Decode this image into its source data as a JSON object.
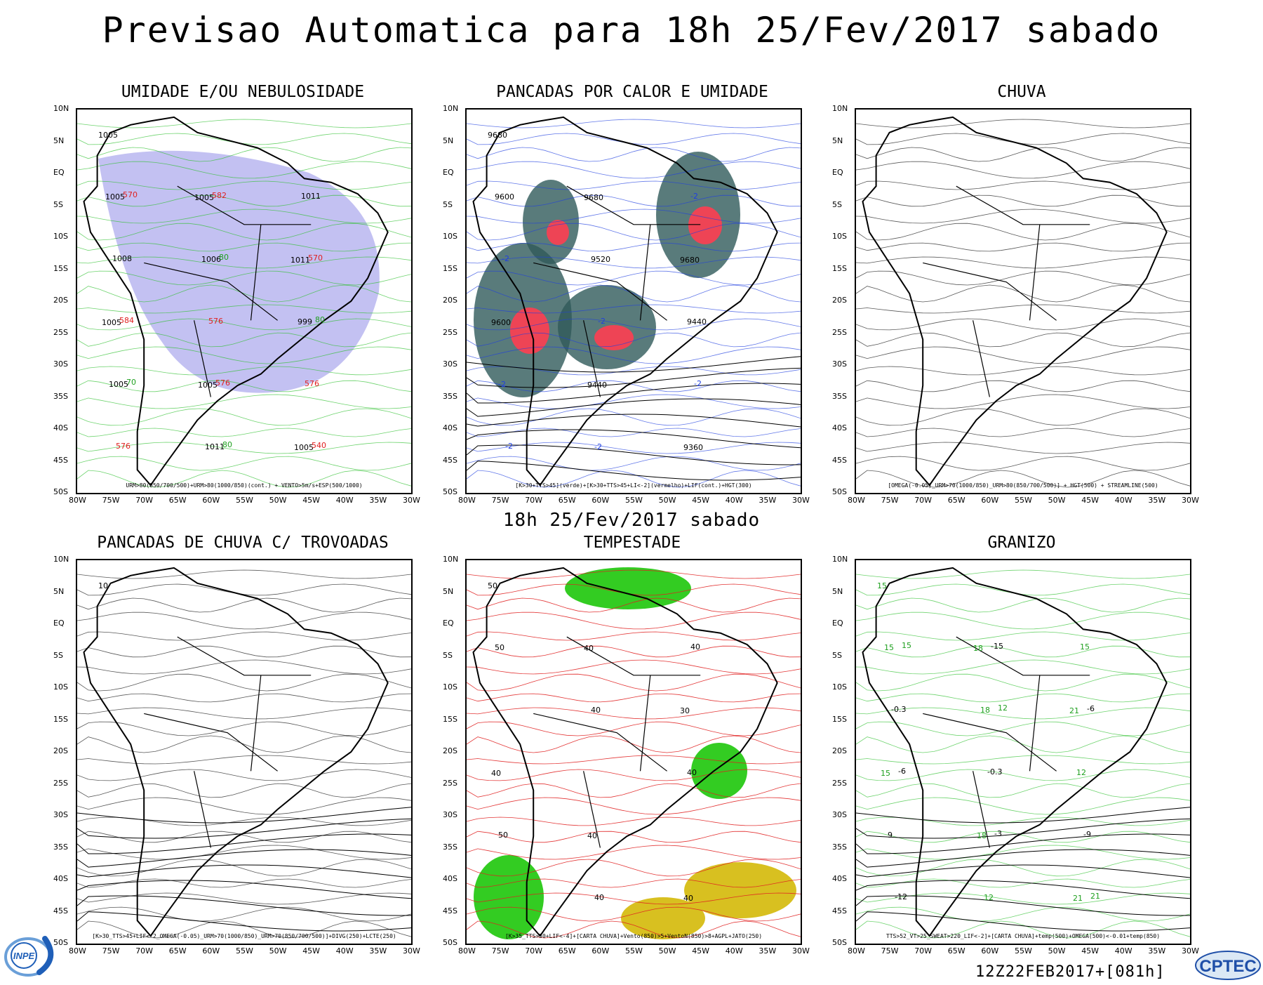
{
  "title": "Previsao Automatica  para 18h 25/Fev/2017 sabado",
  "subtitle": "18h 25/Fev/2017 sabado",
  "run_label": "12Z22FEB2017+[081h]",
  "logos": {
    "left": "INPE",
    "right": "CPTEC"
  },
  "lat_ticks": [
    "10N",
    "5N",
    "EQ",
    "5S",
    "10S",
    "15S",
    "20S",
    "25S",
    "30S",
    "35S",
    "40S",
    "45S",
    "50S"
  ],
  "lon_ticks": [
    "80W",
    "75W",
    "70W",
    "65W",
    "60W",
    "55W",
    "50W",
    "45W",
    "40W",
    "35W",
    "30W"
  ],
  "panels": [
    {
      "id": "umidade",
      "title": "UMIDADE E/OU NEBULOSIDADE",
      "legend": "URM>80(850/700/500)+URM>80(1000/850)(cont.) + VENTO>5m/s+ESP(500/1000)",
      "fill_color": "#b8b6f0",
      "contour_color": "#2fc02f",
      "labels": [
        "1005",
        "1005",
        "1011",
        "1005",
        "1005",
        "1005",
        "1005",
        "1006",
        "999",
        "1005",
        "1011",
        "1011",
        "1008",
        "576",
        "576",
        "576",
        "582",
        "570",
        "584",
        "576",
        "540",
        "570",
        "80",
        "80",
        "70",
        "80"
      ]
    },
    {
      "id": "pancadas-calor",
      "title": "PANCADAS POR CALOR E UMIDADE",
      "legend": "[K>30+TTS>45](verde)+[K>30+TTS>45+LI<-2](vermelho)+LIF(cont.)+HGT(300)",
      "fill_color": "#2f5a5a",
      "contour_color": "#1f3fe0",
      "labels": [
        "9680",
        "9680",
        "9680",
        "9600",
        "9440",
        "9360",
        "9600",
        "9520",
        "9440",
        "-2",
        "-2",
        "-2",
        "-2",
        "-2",
        "-2",
        "-2"
      ]
    },
    {
      "id": "chuva",
      "title": "CHUVA",
      "legend": "[OMEGA(-0.05)_URM>70(1000/850)_URM>80(850/700/500)] + HGT(500) + STREAMLINE(500)",
      "fill_color": "#ffffff",
      "contour_color": "#000000",
      "labels": []
    },
    {
      "id": "pancadas-chuva",
      "title": "PANCADAS DE CHUVA C/ TROVOADAS",
      "legend": "[K>30_TTS>45+LIF<-2_OMEGA(-0.05)_URM>70(1000/850)_URM>70(850/700/500)]+DIVG(250)+LCTE(250)",
      "fill_color": "#ffffff",
      "contour_color": "#1f3fe0",
      "labels": [
        "10"
      ]
    },
    {
      "id": "tempestade",
      "title": "TEMPESTADE",
      "legend": "[K>35_TTS>50+LIF<-4]+[CARTA CHUVA]+Vento(850)>5+VentoN(850)>8+AGPL+JATO(250)",
      "fill_color": "#33cc22",
      "contour_color": "#e02020",
      "labels": [
        "50",
        "40",
        "30",
        "40",
        "40",
        "40",
        "50",
        "40",
        "40",
        "50",
        "40",
        "40"
      ]
    },
    {
      "id": "granizo",
      "title": "GRANIZO",
      "legend": "TTS>52_VT>25_SWEAT>220_LIF<-2]+[CARTA CHUVA]+temp(500)+OMEGA(500)<-0.01+temp(850)",
      "fill_color": "#ffffff",
      "contour_color": "#2fc02f",
      "labels": [
        "15",
        "18",
        "21",
        "15",
        "18",
        "21",
        "15",
        "18",
        "12",
        "9",
        "12",
        "15",
        "-0.3",
        "-0.3",
        "-9",
        "-12",
        "-15",
        "-6",
        "-6",
        "-3",
        "21",
        "15",
        "12"
      ]
    }
  ]
}
